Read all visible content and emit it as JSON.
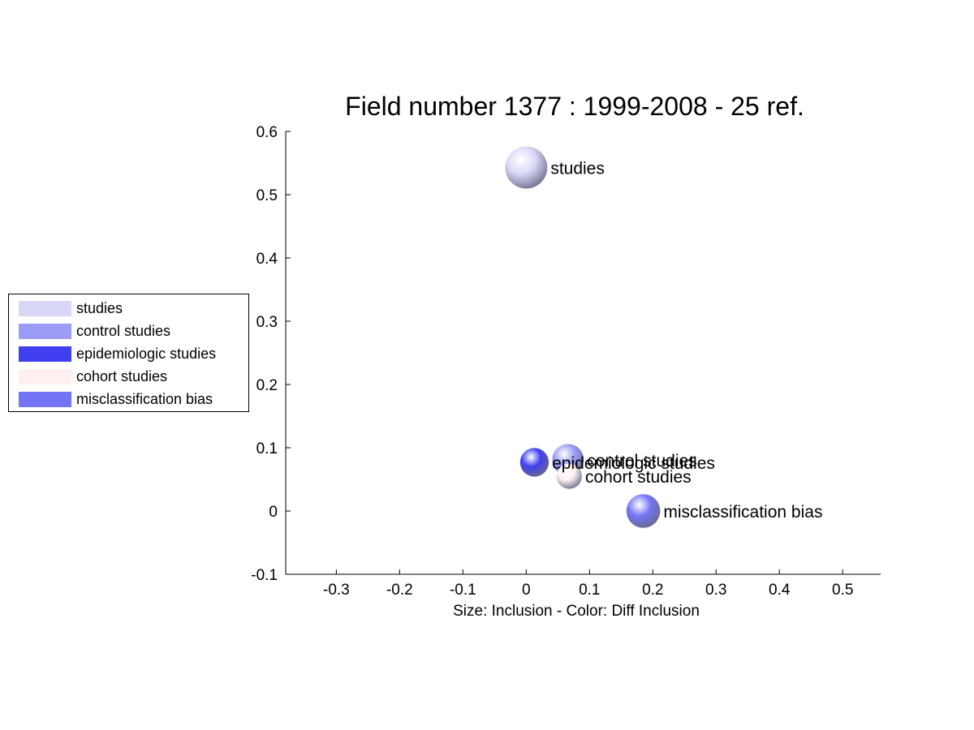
{
  "chart_data": {
    "type": "scatter",
    "title": "Field number 1377 : 1999-2008  - 25 ref.",
    "xlabel": "Size: Inclusion - Color: Diff Inclusion",
    "ylabel": "",
    "xlim": [
      -0.38,
      0.56
    ],
    "ylim": [
      -0.1,
      0.6
    ],
    "xticks": [
      "-0.3",
      "-0.2",
      "-0.1",
      "0",
      "0.1",
      "0.2",
      "0.3",
      "0.4",
      "0.5"
    ],
    "xtick_values": [
      -0.3,
      -0.2,
      -0.1,
      0,
      0.1,
      0.2,
      0.3,
      0.4,
      0.5
    ],
    "yticks": [
      "-0.1",
      "0",
      "0.1",
      "0.2",
      "0.3",
      "0.4",
      "0.5",
      "0.6"
    ],
    "ytick_values": [
      -0.1,
      0,
      0.1,
      0.2,
      0.3,
      0.4,
      0.5,
      0.6
    ],
    "grid": false,
    "legend_placement": "left-outside",
    "points": [
      {
        "label": "studies",
        "x": 0.0,
        "y": 0.543,
        "size": 1.0,
        "color": "#d8d8f6"
      },
      {
        "label": "control studies",
        "x": 0.066,
        "y": 0.081,
        "size": 0.75,
        "color": "#9c9cf8"
      },
      {
        "label": "epidemiologic studies",
        "x": 0.013,
        "y": 0.077,
        "size": 0.68,
        "color": "#4040f0"
      },
      {
        "label": "cohort studies",
        "x": 0.068,
        "y": 0.055,
        "size": 0.6,
        "color": "#fff0f0"
      },
      {
        "label": "misclassification bias",
        "x": 0.185,
        "y": 0.0,
        "size": 0.8,
        "color": "#7474f6"
      }
    ]
  },
  "legend": {
    "items": [
      {
        "label": "studies",
        "color": "#d8d8f6"
      },
      {
        "label": "control studies",
        "color": "#9c9cf8"
      },
      {
        "label": "epidemiologic studies",
        "color": "#4040f0"
      },
      {
        "label": "cohort studies",
        "color": "#fff0f0"
      },
      {
        "label": "misclassification bias",
        "color": "#7474f6"
      }
    ]
  }
}
